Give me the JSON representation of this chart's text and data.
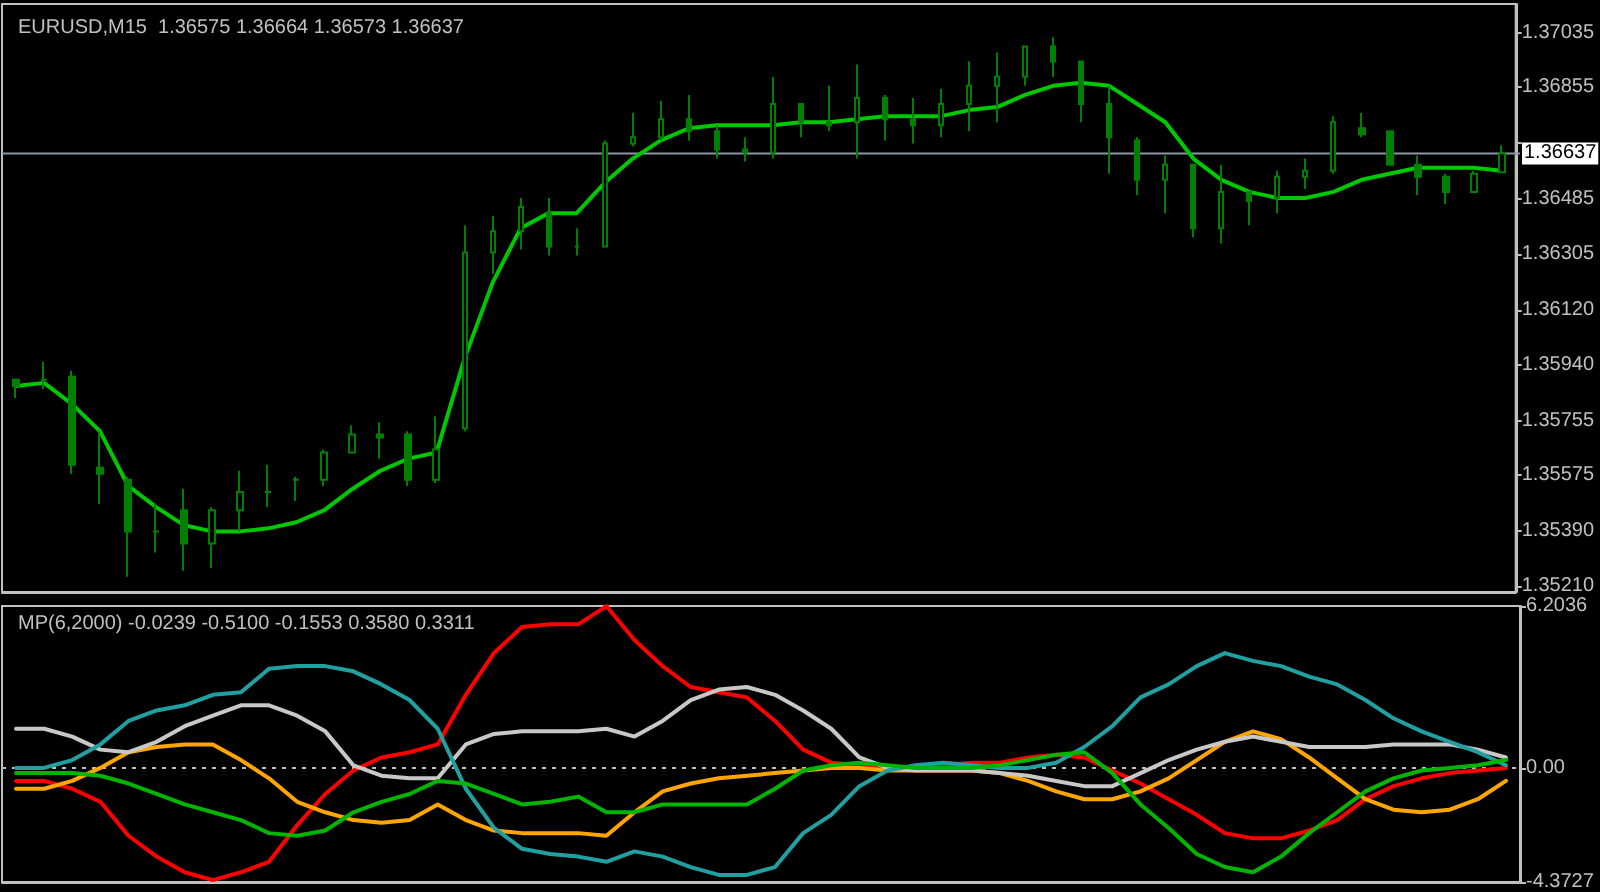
{
  "chart_data": [
    {
      "type": "candlestick",
      "title": "EURUSD,M15  1.36575 1.36664 1.36573 1.36637",
      "color": "#008000",
      "categories": [
        null,
        null,
        null,
        null,
        null,
        null,
        null,
        null,
        null,
        null,
        null,
        null,
        null,
        null,
        null,
        null,
        null,
        null,
        null,
        null,
        null,
        null,
        null,
        null,
        null,
        null,
        null,
        null,
        null,
        null,
        null,
        null,
        null,
        null,
        null,
        null,
        null,
        null,
        null,
        null,
        null,
        null,
        null,
        null,
        null,
        null,
        null,
        null,
        null,
        null,
        null,
        null,
        null,
        null
      ],
      "ohlc": [
        [
          1.3589,
          1.3589,
          1.3583,
          1.3587
        ],
        [
          1.3589,
          1.3595,
          1.3586,
          1.3589
        ],
        [
          1.359,
          1.3592,
          1.3558,
          1.3561
        ],
        [
          1.356,
          1.3572,
          1.3548,
          1.3558
        ],
        [
          1.3556,
          1.3557,
          1.3524,
          1.3539
        ],
        [
          1.3539,
          1.3548,
          1.3532,
          1.3539
        ],
        [
          1.3546,
          1.3553,
          1.3526,
          1.3535
        ],
        [
          1.3535,
          1.3547,
          1.3527,
          1.3546
        ],
        [
          1.3546,
          1.3559,
          1.3539,
          1.3552
        ],
        [
          1.3552,
          1.3561,
          1.3547,
          1.3552
        ],
        [
          1.3556,
          1.3557,
          1.3549,
          1.3556
        ],
        [
          1.3556,
          1.3566,
          1.3554,
          1.3565
        ],
        [
          1.3565,
          1.3574,
          1.3565,
          1.3571
        ],
        [
          1.3571,
          1.3575,
          1.3563,
          1.357
        ],
        [
          1.3571,
          1.3572,
          1.3554,
          1.3556
        ],
        [
          1.3556,
          1.3577,
          1.3555,
          1.3566
        ],
        [
          1.3573,
          1.364,
          1.3572,
          1.3631
        ],
        [
          1.3631,
          1.3643,
          1.3624,
          1.3638
        ],
        [
          1.3638,
          1.3649,
          1.3632,
          1.3646
        ],
        [
          1.3644,
          1.3649,
          1.363,
          1.3633
        ],
        [
          1.3633,
          1.3639,
          1.363,
          1.3633
        ],
        [
          1.3633,
          1.3668,
          1.3633,
          1.3667
        ],
        [
          1.3667,
          1.3677,
          1.3666,
          1.3669
        ],
        [
          1.3669,
          1.3681,
          1.3668,
          1.3675
        ],
        [
          1.3675,
          1.3683,
          1.3668,
          1.3671
        ],
        [
          1.3671,
          1.3673,
          1.3662,
          1.3665
        ],
        [
          1.3665,
          1.3669,
          1.3661,
          1.3664
        ],
        [
          1.3664,
          1.3689,
          1.3662,
          1.368
        ],
        [
          1.368,
          1.368,
          1.3669,
          1.3674
        ],
        [
          1.3674,
          1.3686,
          1.3671,
          1.3673
        ],
        [
          1.3674,
          1.3693,
          1.3662,
          1.3682
        ],
        [
          1.3682,
          1.3683,
          1.3668,
          1.3675
        ],
        [
          1.3675,
          1.3682,
          1.3667,
          1.3673
        ],
        [
          1.3673,
          1.3685,
          1.3669,
          1.368
        ],
        [
          1.368,
          1.3694,
          1.3671,
          1.3686
        ],
        [
          1.3686,
          1.3697,
          1.3674,
          1.3689
        ],
        [
          1.3689,
          1.3699,
          1.3686,
          1.3699
        ],
        [
          1.3699,
          1.3702,
          1.3689,
          1.3694
        ],
        [
          1.3694,
          1.3694,
          1.3674,
          1.368
        ],
        [
          1.368,
          1.3686,
          1.3657,
          1.3669
        ],
        [
          1.3668,
          1.3669,
          1.365,
          1.3655
        ],
        [
          1.3655,
          1.3663,
          1.3644,
          1.366
        ],
        [
          1.366,
          1.366,
          1.3636,
          1.3639
        ],
        [
          1.3639,
          1.366,
          1.3634,
          1.3651
        ],
        [
          1.3651,
          1.3651,
          1.364,
          1.3648
        ],
        [
          1.3649,
          1.3658,
          1.3644,
          1.3656
        ],
        [
          1.3656,
          1.3662,
          1.3652,
          1.3658
        ],
        [
          1.3658,
          1.3676,
          1.3657,
          1.3674
        ],
        [
          1.3672,
          1.3677,
          1.3669,
          1.367
        ],
        [
          1.3671,
          1.3671,
          1.366,
          1.366
        ],
        [
          1.366,
          1.3663,
          1.365,
          1.3656
        ],
        [
          1.3656,
          1.3657,
          1.3647,
          1.3651
        ],
        [
          1.3651,
          1.3658,
          1.3651,
          1.3657
        ],
        [
          1.36575,
          1.36664,
          1.36573,
          1.36637
        ]
      ],
      "series": [
        {
          "type": "line",
          "color": "#00c800",
          "values": [
            1.3587,
            1.3588,
            1.3581,
            1.3572,
            1.3554,
            1.3547,
            1.3541,
            1.3539,
            1.3539,
            1.354,
            1.3542,
            1.3546,
            1.3553,
            1.3559,
            1.3563,
            1.3565,
            1.3596,
            1.3621,
            1.3639,
            1.3644,
            1.3644,
            1.3654,
            1.3662,
            1.3668,
            1.3672,
            1.3673,
            1.3673,
            1.3673,
            1.3674,
            1.3674,
            1.3675,
            1.3676,
            1.3676,
            1.3676,
            1.3678,
            1.3679,
            1.3683,
            1.3686,
            1.3687,
            1.3686,
            1.368,
            1.3674,
            1.3662,
            1.3655,
            1.3651,
            1.3649,
            1.3649,
            1.3651,
            1.3655,
            1.3657,
            1.3659,
            1.3659,
            1.3659,
            1.3658
          ]
        }
      ],
      "ylim": [
        1.3519,
        1.3713
      ],
      "yticks": [
        {
          "value": 1.37035,
          "label": "1.37035"
        },
        {
          "value": 1.36855,
          "label": "1.36855"
        },
        {
          "value": 1.3667,
          "label": null
        },
        {
          "value": 1.36485,
          "label": "1.36485"
        },
        {
          "value": 1.36305,
          "label": "1.36305"
        },
        {
          "value": 1.3612,
          "label": "1.36120"
        },
        {
          "value": 1.3594,
          "label": "1.35940"
        },
        {
          "value": 1.35755,
          "label": "1.35755"
        },
        {
          "value": 1.35575,
          "label": "1.35575"
        },
        {
          "value": 1.3539,
          "label": "1.35390"
        },
        {
          "value": 1.3521,
          "label": "1.35210"
        }
      ],
      "ref_lines": [
        {
          "axis": "y",
          "value": 1.36637,
          "label": "1.36637",
          "color": "#8c96a6"
        }
      ],
      "tick_labels": "y",
      "grid": false,
      "marker": "none"
    },
    {
      "type": "line",
      "title": "MP(6,2000) -0.0239 -0.5100 -0.1553 0.3580 0.3311",
      "categories": [
        null,
        null,
        null,
        null,
        null,
        null,
        null,
        null,
        null,
        null,
        null,
        null,
        null,
        null,
        null,
        null,
        null,
        null,
        null,
        null,
        null,
        null,
        null,
        null,
        null,
        null,
        null,
        null,
        null,
        null,
        null,
        null,
        null,
        null,
        null,
        null,
        null,
        null,
        null,
        null,
        null,
        null,
        null,
        null,
        null,
        null,
        null,
        null,
        null,
        null,
        null,
        null,
        null,
        null
      ],
      "series": [
        {
          "color": "#ff0000",
          "values": [
            -0.5,
            -0.5,
            -0.8,
            -1.3,
            -2.6,
            -3.4,
            -4.0,
            -4.3,
            -4.0,
            -3.6,
            -2.2,
            -1.0,
            -0.1,
            0.4,
            0.6,
            0.9,
            2.8,
            4.4,
            5.4,
            5.5,
            5.5,
            6.2,
            4.9,
            3.9,
            3.1,
            2.9,
            2.7,
            1.8,
            0.7,
            0.2,
            0.1,
            0.0,
            0.0,
            0.1,
            0.2,
            0.2,
            0.4,
            0.5,
            0.4,
            -0.1,
            -0.6,
            -1.2,
            -1.8,
            -2.5,
            -2.7,
            -2.7,
            -2.4,
            -2.0,
            -1.2,
            -0.7,
            -0.4,
            -0.2,
            -0.1,
            0.0
          ]
        },
        {
          "color": "#ffa500",
          "values": [
            -0.8,
            -0.8,
            -0.5,
            0.0,
            0.6,
            0.8,
            0.9,
            0.9,
            0.3,
            -0.4,
            -1.3,
            -1.7,
            -2.0,
            -2.1,
            -2.0,
            -1.4,
            -2.0,
            -2.4,
            -2.5,
            -2.5,
            -2.5,
            -2.6,
            -1.7,
            -0.9,
            -0.6,
            -0.4,
            -0.3,
            -0.2,
            -0.1,
            0.0,
            0.0,
            -0.1,
            -0.1,
            -0.1,
            -0.1,
            -0.2,
            -0.5,
            -0.9,
            -1.2,
            -1.2,
            -0.9,
            -0.4,
            0.3,
            1.0,
            1.4,
            1.1,
            0.4,
            -0.4,
            -1.2,
            -1.6,
            -1.7,
            -1.6,
            -1.2,
            -0.5
          ]
        },
        {
          "color": "#c8c8c8",
          "values": [
            1.5,
            1.5,
            1.2,
            0.7,
            0.6,
            1.0,
            1.6,
            2.0,
            2.4,
            2.4,
            2.0,
            1.4,
            0.1,
            -0.3,
            -0.4,
            -0.4,
            0.9,
            1.3,
            1.4,
            1.4,
            1.4,
            1.5,
            1.2,
            1.8,
            2.6,
            3.0,
            3.1,
            2.8,
            2.2,
            1.5,
            0.4,
            0.0,
            -0.1,
            -0.1,
            -0.1,
            -0.2,
            -0.3,
            -0.5,
            -0.7,
            -0.7,
            -0.2,
            0.3,
            0.7,
            1.0,
            1.2,
            1.0,
            0.8,
            0.8,
            0.8,
            0.9,
            0.9,
            0.9,
            0.7,
            0.4
          ]
        },
        {
          "color": "#20a0a0",
          "values": [
            0.0,
            0.0,
            0.3,
            0.9,
            1.8,
            2.2,
            2.4,
            2.8,
            2.9,
            3.8,
            3.9,
            3.9,
            3.7,
            3.2,
            2.6,
            1.5,
            -0.8,
            -2.3,
            -3.1,
            -3.3,
            -3.4,
            -3.6,
            -3.2,
            -3.4,
            -3.8,
            -4.1,
            -4.1,
            -3.8,
            -2.5,
            -1.8,
            -0.7,
            -0.1,
            0.1,
            0.2,
            0.1,
            0.0,
            0.0,
            0.2,
            0.8,
            1.6,
            2.7,
            3.2,
            3.9,
            4.4,
            4.1,
            3.9,
            3.5,
            3.2,
            2.6,
            1.9,
            1.4,
            1.0,
            0.6,
            0.1
          ]
        },
        {
          "color": "#00b400",
          "values": [
            -0.2,
            -0.2,
            -0.2,
            -0.3,
            -0.6,
            -1.0,
            -1.4,
            -1.7,
            -2.0,
            -2.5,
            -2.6,
            -2.4,
            -1.7,
            -1.3,
            -1.0,
            -0.5,
            -0.6,
            -1.0,
            -1.4,
            -1.3,
            -1.1,
            -1.7,
            -1.7,
            -1.4,
            -1.4,
            -1.4,
            -1.4,
            -0.8,
            -0.1,
            0.1,
            0.2,
            0.1,
            0.0,
            0.0,
            0.0,
            0.1,
            0.3,
            0.5,
            0.6,
            -0.2,
            -1.4,
            -2.3,
            -3.3,
            -3.8,
            -4.0,
            -3.4,
            -2.5,
            -1.7,
            -0.9,
            -0.4,
            -0.1,
            0.0,
            0.1,
            0.3
          ]
        }
      ],
      "ylim": [
        -4.3727,
        6.2036
      ],
      "yticks": [
        6.2036,
        {
          "value": 0,
          "label": "0.00"
        },
        -4.3727
      ],
      "ref_lines": [
        {
          "axis": "y",
          "value": 0,
          "color": "#c0c0c0",
          "line_style": "dotted"
        }
      ],
      "tick_labels": "y",
      "grid": false,
      "marker": "none"
    }
  ]
}
